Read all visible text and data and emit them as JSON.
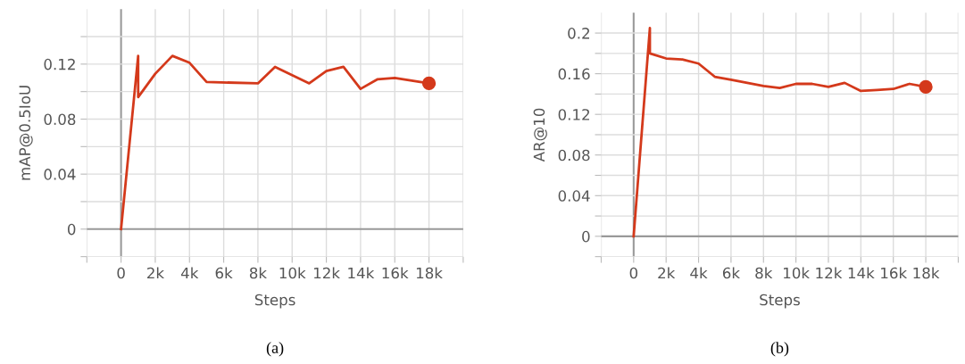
{
  "chart_data": [
    {
      "type": "line",
      "xlabel": "Steps",
      "ylabel": "mAP@0.5IoU",
      "annotations": [
        "(a)"
      ],
      "grid": true,
      "legend": false,
      "line_style": "solid",
      "marker": "none",
      "x": [
        0,
        1000,
        1000,
        2000,
        3000,
        4000,
        5000,
        8000,
        9000,
        10000,
        11000,
        12000,
        13000,
        14000,
        15000,
        16000,
        18000
      ],
      "series": [
        {
          "color": "#d4391b",
          "values": [
            0,
            0.126,
            0.096,
            0.113,
            0.126,
            0.121,
            0.107,
            0.106,
            0.118,
            0.112,
            0.106,
            0.115,
            0.118,
            0.102,
            0.109,
            0.11,
            0.106
          ]
        },
        {
          "type": "scatter",
          "marker": "circle",
          "color": "#d4391b",
          "values": [
            null,
            null,
            null,
            null,
            null,
            null,
            null,
            null,
            null,
            null,
            null,
            null,
            null,
            null,
            null,
            null,
            0.106
          ]
        }
      ],
      "xlim": [
        -2000,
        20000
      ],
      "xticks": [
        {
          "value": -2000,
          "label": null
        },
        0,
        {
          "value": 2000,
          "label": "2k"
        },
        {
          "value": 4000,
          "label": "4k"
        },
        {
          "value": 6000,
          "label": "6k"
        },
        {
          "value": 8000,
          "label": "8k"
        },
        {
          "value": 10000,
          "label": "10k"
        },
        {
          "value": 12000,
          "label": "12k"
        },
        {
          "value": 14000,
          "label": "14k"
        },
        {
          "value": 16000,
          "label": "16k"
        },
        {
          "value": 18000,
          "label": "18k"
        },
        {
          "value": 20000,
          "label": null
        }
      ],
      "ylim": [
        -0.02,
        0.16
      ],
      "yticks": [
        {
          "value": -0.02,
          "label": null
        },
        0,
        {
          "value": 0.02,
          "label": null
        },
        0.04,
        {
          "value": 0.06,
          "label": null
        },
        0.08,
        {
          "value": 0.1,
          "label": null
        },
        0.12,
        {
          "value": 0.14,
          "label": null
        }
      ]
    },
    {
      "type": "line",
      "xlabel": "Steps",
      "ylabel": "AR@10",
      "annotations": [
        "(b)"
      ],
      "grid": true,
      "legend": false,
      "line_style": "solid",
      "marker": "none",
      "x": [
        0,
        1000,
        1000,
        2000,
        3000,
        4000,
        5000,
        6000,
        7000,
        8000,
        9000,
        10000,
        11000,
        12000,
        13000,
        14000,
        15000,
        16000,
        17000,
        18000
      ],
      "series": [
        {
          "color": "#d4391b",
          "values": [
            0,
            0.205,
            0.18,
            0.175,
            0.174,
            0.17,
            0.157,
            0.154,
            0.151,
            0.148,
            0.146,
            0.15,
            0.15,
            0.147,
            0.151,
            0.143,
            0.144,
            0.145,
            0.15,
            0.147
          ]
        },
        {
          "type": "scatter",
          "marker": "circle",
          "color": "#d4391b",
          "values": [
            null,
            null,
            null,
            null,
            null,
            null,
            null,
            null,
            null,
            null,
            null,
            null,
            null,
            null,
            null,
            null,
            null,
            null,
            null,
            0.147
          ]
        }
      ],
      "xlim": [
        -2000,
        20000
      ],
      "xticks": [
        {
          "value": -2000,
          "label": null
        },
        0,
        {
          "value": 2000,
          "label": "2k"
        },
        {
          "value": 4000,
          "label": "4k"
        },
        {
          "value": 6000,
          "label": "6k"
        },
        {
          "value": 8000,
          "label": "8k"
        },
        {
          "value": 10000,
          "label": "10k"
        },
        {
          "value": 12000,
          "label": "12k"
        },
        {
          "value": 14000,
          "label": "14k"
        },
        {
          "value": 16000,
          "label": "16k"
        },
        {
          "value": 18000,
          "label": "18k"
        },
        {
          "value": 20000,
          "label": null
        }
      ],
      "ylim": [
        -0.02,
        0.22
      ],
      "yticks": [
        {
          "value": -0.02,
          "label": null
        },
        0,
        {
          "value": 0.02,
          "label": null
        },
        0.04,
        {
          "value": 0.06,
          "label": null
        },
        0.08,
        {
          "value": 0.1,
          "label": null
        },
        0.12,
        {
          "value": 0.14,
          "label": null
        },
        0.16,
        {
          "value": 0.18,
          "label": null
        },
        0.2
      ]
    }
  ]
}
